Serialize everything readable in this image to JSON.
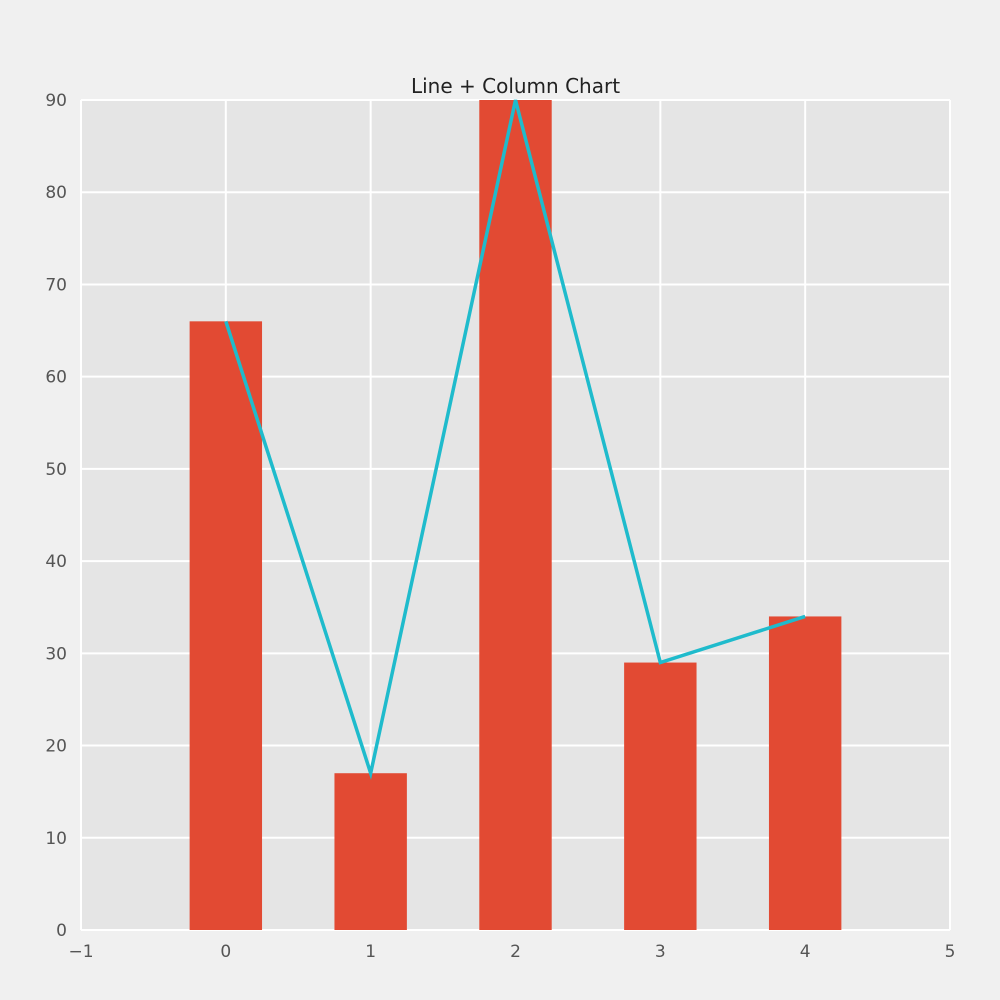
{
  "chart_data": {
    "type": "bar",
    "title": "Line + Column Chart",
    "xlabel": "",
    "ylabel": "",
    "x": [
      0,
      1,
      2,
      3,
      4
    ],
    "xlim": [
      -1,
      5
    ],
    "ylim": [
      0,
      90
    ],
    "xticks": [
      -1,
      0,
      1,
      2,
      3,
      4,
      5
    ],
    "yticks": [
      0,
      10,
      20,
      30,
      40,
      50,
      60,
      70,
      80,
      90
    ],
    "xtick_labels": [
      "−1",
      "0",
      "1",
      "2",
      "3",
      "4",
      "5"
    ],
    "ytick_labels": [
      "0",
      "10",
      "20",
      "30",
      "40",
      "50",
      "60",
      "70",
      "80",
      "90"
    ],
    "bar_width": 0.5,
    "grid": true,
    "legend": "none",
    "series": [
      {
        "type": "bar",
        "values": [
          66,
          17,
          90,
          29,
          34
        ],
        "color": "#e24a33"
      },
      {
        "type": "line",
        "values": [
          66,
          17,
          90,
          29,
          34
        ],
        "color": "#1fbbcc"
      }
    ],
    "colors": {
      "background": "#f0f0f0",
      "plot_background": "#e5e5e5",
      "grid": "#ffffff"
    }
  }
}
